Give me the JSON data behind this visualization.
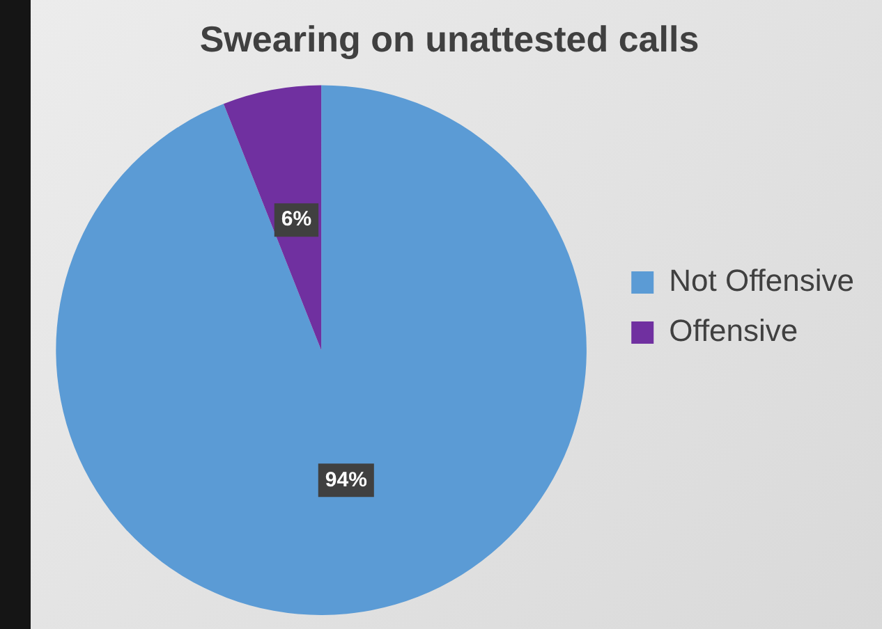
{
  "chart_data": {
    "type": "pie",
    "title": "Swearing on unattested calls",
    "categories": [
      "Not Offensive",
      "Offensive"
    ],
    "values": [
      94,
      6
    ],
    "colors": [
      "#5b9bd5",
      "#7030a0"
    ],
    "value_labels": [
      "94%",
      "6%"
    ],
    "legend": "right"
  }
}
